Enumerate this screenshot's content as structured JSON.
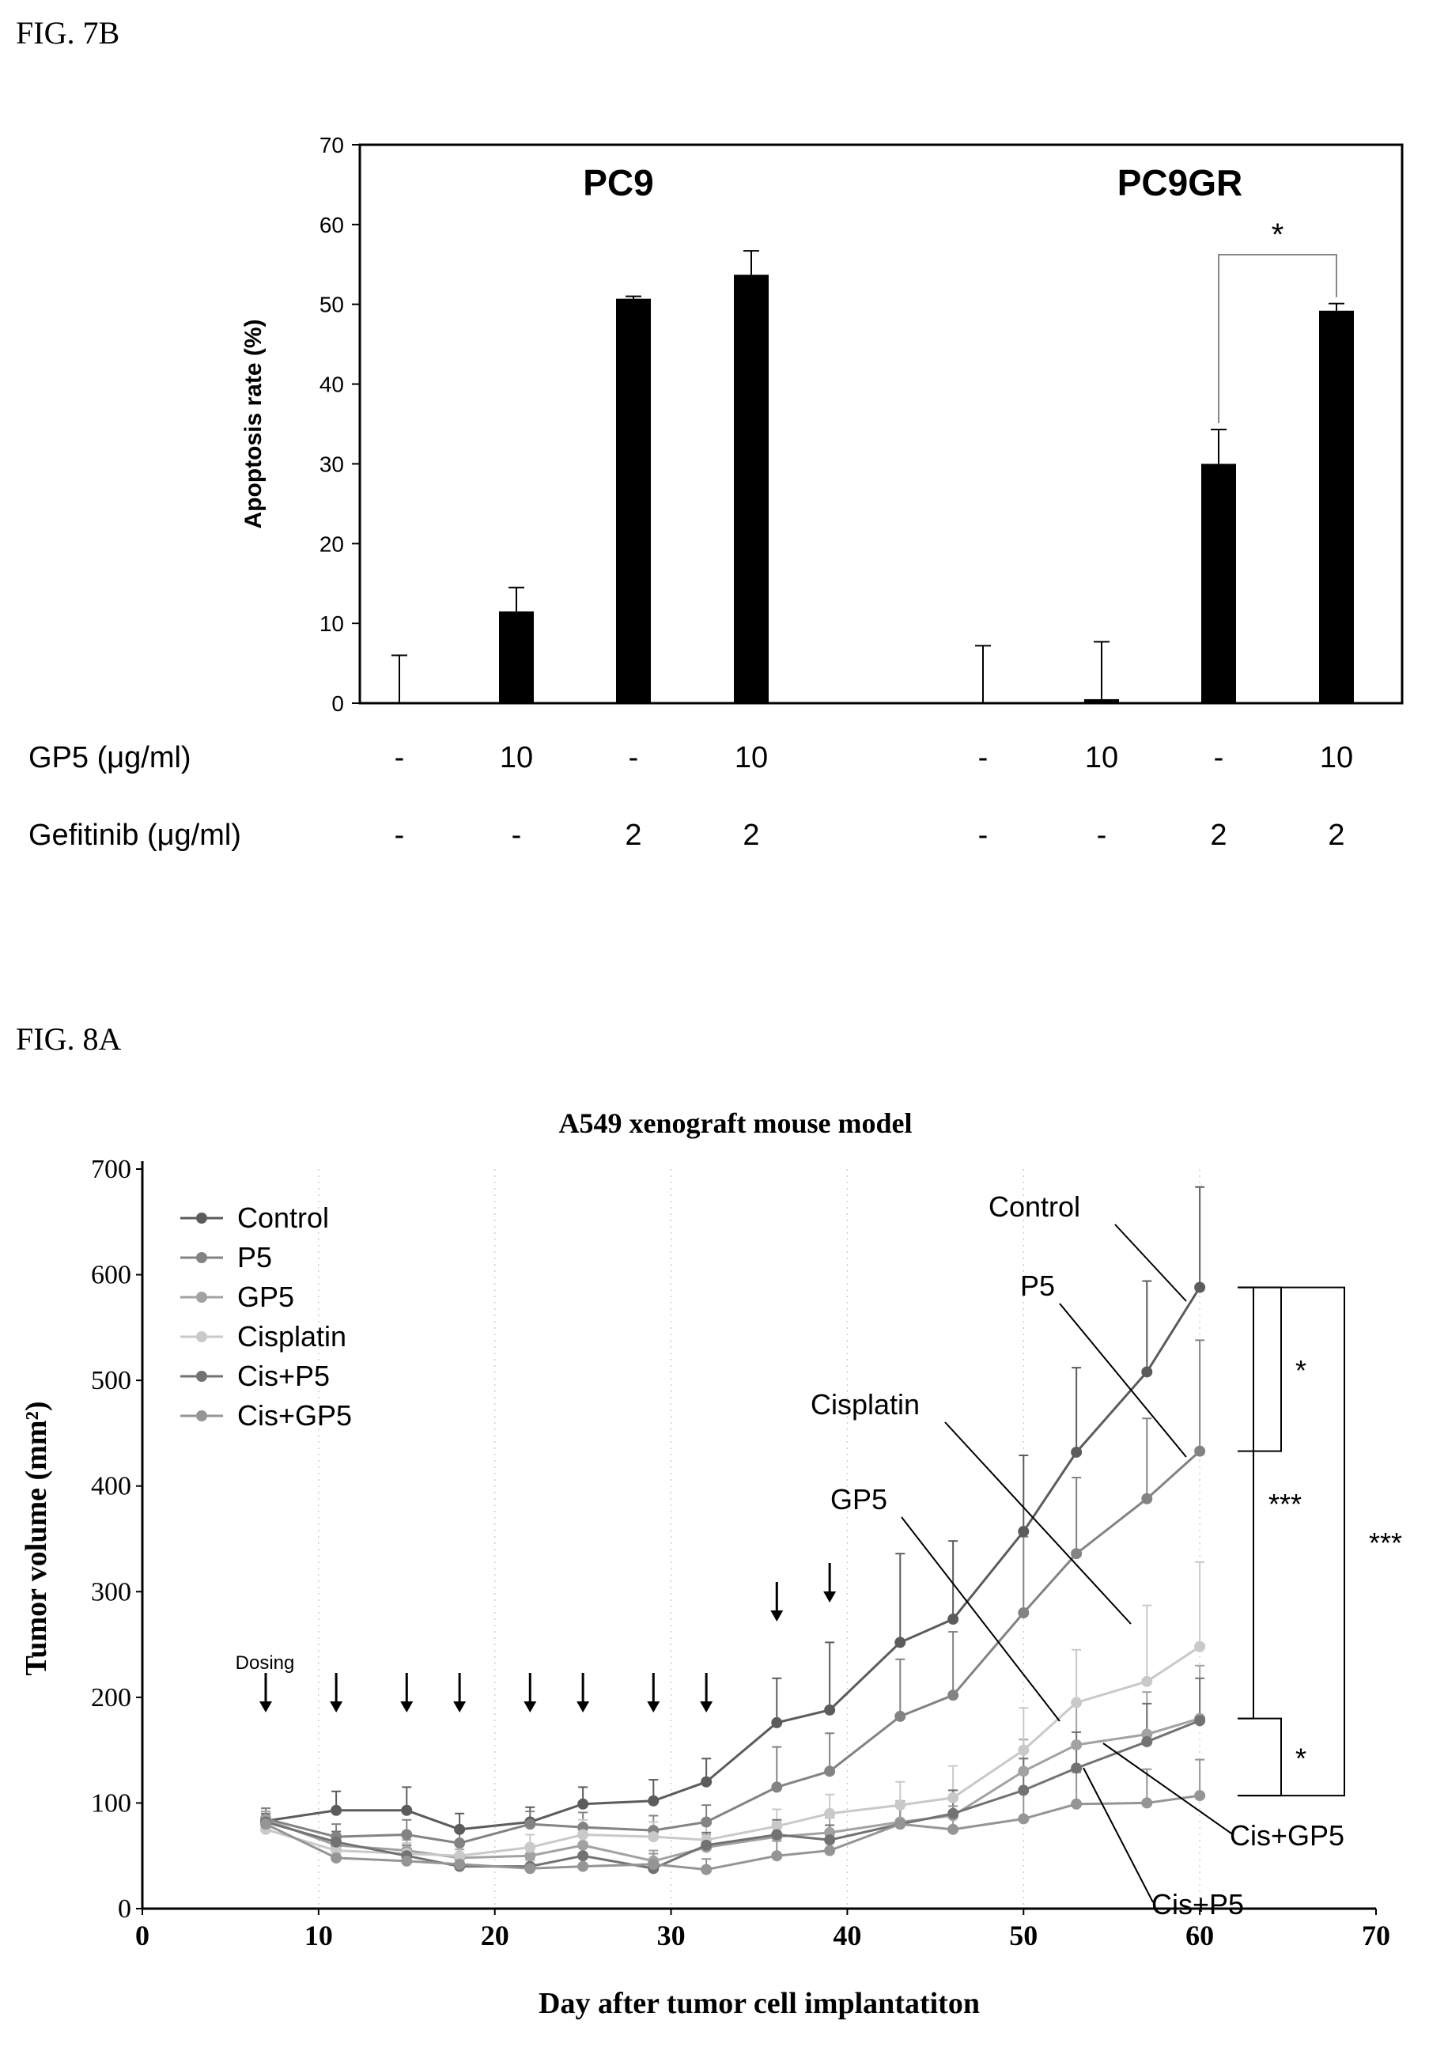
{
  "figures": {
    "fig7b": "FIG. 7B",
    "fig8a": "FIG. 8A"
  },
  "chart_data": [
    {
      "type": "bar",
      "ylabel": "Apoptosis rate (%)",
      "ylim": [
        0,
        70
      ],
      "yticks": [
        0,
        10,
        20,
        30,
        40,
        50,
        60,
        70
      ],
      "groups": [
        "PC9",
        "PC9GR"
      ],
      "categories": [
        "PC9 -/-",
        "PC9 10/-",
        "PC9 -/2",
        "PC9 10/2",
        "PC9GR -/-",
        "PC9GR 10/-",
        "PC9GR -/2",
        "PC9GR 10/2"
      ],
      "values": [
        0,
        11.5,
        50.7,
        53.7,
        0,
        0.5,
        30.0,
        49.2
      ],
      "errors": [
        6.0,
        3.0,
        0.3,
        3.0,
        7.2,
        7.2,
        4.3,
        0.9
      ],
      "row_labels": [
        "GP5 (μg/ml)",
        "Gefitinib (μg/ml)"
      ],
      "gp5": [
        "-",
        "10",
        "-",
        "10",
        "-",
        "10",
        "-",
        "10"
      ],
      "gefitinib": [
        "-",
        "-",
        "2",
        "2",
        "-",
        "-",
        "2",
        "2"
      ],
      "significance": [
        {
          "from": 6,
          "to": 7,
          "label": "*"
        }
      ],
      "grid": false,
      "color": "#000000"
    },
    {
      "type": "line",
      "title": "A549 xenograft mouse model",
      "xlabel": "Day after tumor cell implantatiton",
      "ylabel": "Tumor volume (mm²)",
      "xlim": [
        0,
        70
      ],
      "ylim": [
        0,
        700
      ],
      "xticks": [
        0,
        10,
        20,
        30,
        40,
        50,
        60,
        70
      ],
      "yticks": [
        0,
        100,
        200,
        300,
        400,
        500,
        600,
        700
      ],
      "x": [
        7,
        11,
        15,
        18,
        22,
        25,
        29,
        32,
        36,
        39,
        43,
        46,
        50,
        53,
        57,
        60
      ],
      "series": [
        {
          "name": "Control",
          "color": "#5c5c5c",
          "values": [
            83,
            93,
            93,
            75,
            82,
            99,
            102,
            120,
            176,
            188,
            252,
            274,
            357,
            432,
            508,
            588
          ],
          "errors": [
            12,
            18,
            22,
            15,
            14,
            16,
            20,
            22,
            42,
            64,
            84,
            74,
            72,
            80,
            86,
            95
          ]
        },
        {
          "name": "P5",
          "color": "#838383",
          "values": [
            85,
            68,
            70,
            62,
            80,
            77,
            74,
            82,
            115,
            130,
            182,
            202,
            280,
            336,
            388,
            433
          ],
          "errors": [
            10,
            12,
            14,
            12,
            12,
            14,
            14,
            16,
            38,
            36,
            54,
            60,
            72,
            72,
            76,
            105
          ]
        },
        {
          "name": "GP5",
          "color": "#a2a2a2",
          "values": [
            84,
            60,
            55,
            48,
            50,
            60,
            45,
            58,
            68,
            72,
            82,
            88,
            130,
            155,
            165,
            180
          ],
          "errors": [
            8,
            10,
            10,
            8,
            10,
            12,
            10,
            12,
            14,
            14,
            20,
            24,
            30,
            40,
            40,
            50
          ]
        },
        {
          "name": "Cisplatin",
          "color": "#c9c9c9",
          "values": [
            75,
            55,
            52,
            50,
            58,
            70,
            68,
            65,
            78,
            90,
            98,
            105,
            150,
            195,
            215,
            248
          ],
          "errors": [
            8,
            10,
            10,
            10,
            12,
            14,
            14,
            14,
            16,
            18,
            22,
            30,
            40,
            50,
            72,
            80
          ]
        },
        {
          "name": "Cis+P5",
          "color": "#727272",
          "values": [
            82,
            63,
            50,
            40,
            40,
            50,
            38,
            60,
            70,
            65,
            80,
            90,
            112,
            133,
            158,
            178
          ],
          "errors": [
            8,
            10,
            10,
            8,
            8,
            10,
            8,
            12,
            14,
            14,
            18,
            22,
            30,
            34,
            36,
            40
          ]
        },
        {
          "name": "Cis+GP5",
          "color": "#959595",
          "values": [
            80,
            48,
            45,
            42,
            38,
            40,
            42,
            37,
            50,
            55,
            80,
            75,
            85,
            99,
            100,
            107
          ],
          "errors": [
            8,
            10,
            10,
            8,
            8,
            10,
            10,
            10,
            14,
            14,
            20,
            22,
            26,
            30,
            32,
            34
          ]
        }
      ],
      "legend": [
        "Control",
        "P5",
        "GP5",
        "Cisplatin",
        "Cis+P5",
        "Cis+GP5"
      ],
      "legend_position": "top-left",
      "dosing_label": "Dosing",
      "dosing_days": [
        7,
        11,
        15,
        18,
        22,
        25,
        29,
        32,
        36,
        39
      ],
      "annotations": [
        "Control",
        "P5",
        "Cisplatin",
        "GP5",
        "Cis+GP5",
        "Cis+P5"
      ],
      "significance": [
        {
          "from": 588,
          "to": 433,
          "label": "*"
        },
        {
          "from": 588,
          "to": 180,
          "label": "***"
        },
        {
          "from": 588,
          "to": 107,
          "label": "***"
        },
        {
          "from": 180,
          "to": 107,
          "label": "*"
        }
      ],
      "grid": true
    }
  ]
}
